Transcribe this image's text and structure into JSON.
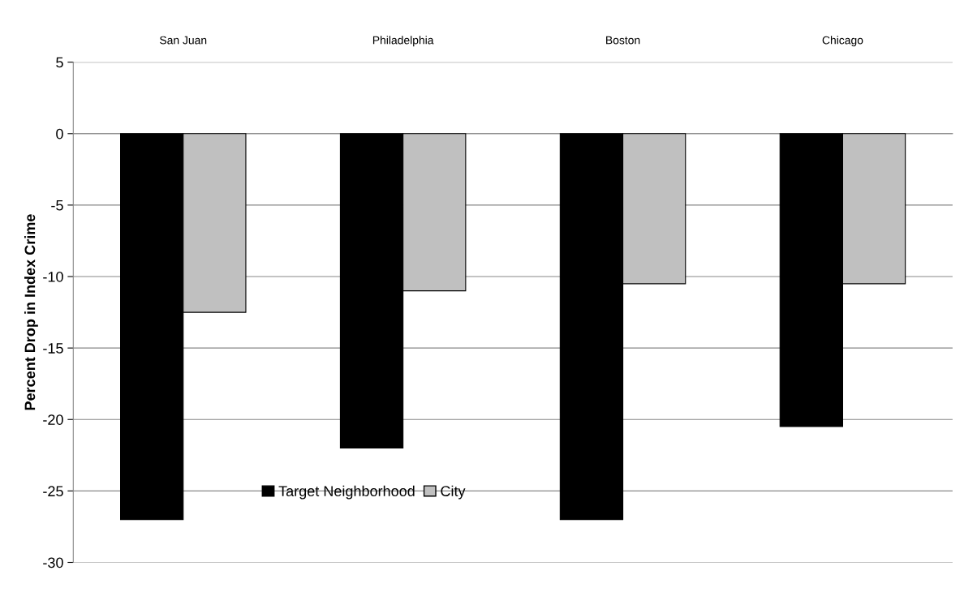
{
  "chart_data": {
    "type": "bar",
    "ylabel": "Percent Drop in Index Crime",
    "categories": [
      "San Juan",
      "Philadelphia",
      "Boston",
      "Chicago"
    ],
    "series": [
      {
        "name": "Target Neighborhood",
        "color": "#000000",
        "values": [
          -27,
          -22,
          -27,
          -20.5
        ]
      },
      {
        "name": "City",
        "color": "#c0c0c0",
        "values": [
          -12.5,
          -11,
          -10.5,
          -10.5
        ]
      }
    ],
    "ylim": [
      -30,
      5
    ],
    "yticks": [
      5,
      0,
      -5,
      -10,
      -15,
      -20,
      -25,
      -30
    ],
    "grid": "y",
    "legend": "bottom"
  }
}
